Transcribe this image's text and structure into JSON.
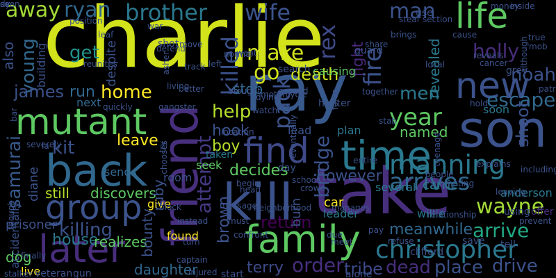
{
  "words": [
    {
      "text": "charlie",
      "color": "#d2e21b"
    },
    {
      "text": "ray",
      "color": "#38598c"
    },
    {
      "text": "friend",
      "color": "#472f7d"
    },
    {
      "text": "take",
      "color": "#472f7d"
    },
    {
      "text": "kill",
      "color": "#3b528b"
    },
    {
      "text": "son",
      "color": "#3b528b"
    },
    {
      "text": "time",
      "color": "#2a788e"
    },
    {
      "text": "back",
      "color": "#31688e"
    },
    {
      "text": "group",
      "color": "#3b528b"
    },
    {
      "text": "family",
      "color": "#5ec962"
    },
    {
      "text": "mutant",
      "color": "#5ec962"
    },
    {
      "text": "find",
      "color": "#3e4a89"
    },
    {
      "text": "later",
      "color": "#472d7b"
    },
    {
      "text": "life",
      "color": "#5ec962"
    },
    {
      "text": "new",
      "color": "#3b528b"
    },
    {
      "text": "christopher",
      "color": "#2a788e"
    },
    {
      "text": "manning",
      "color": "#2a788e"
    },
    {
      "text": "arrives",
      "color": "#31688e"
    },
    {
      "text": "wayne",
      "color": "#a2da37"
    },
    {
      "text": "arrive",
      "color": "#22a884"
    },
    {
      "text": "brother",
      "color": "#2a788e"
    },
    {
      "text": "wife",
      "color": "#3b528b"
    },
    {
      "text": "attempt",
      "color": "#443983"
    },
    {
      "text": "bridge",
      "color": "#3b528b"
    },
    {
      "text": "samurai",
      "color": "#38598c"
    },
    {
      "text": "away",
      "color": "#a2da37"
    },
    {
      "text": "ryan",
      "color": "#31688e"
    },
    {
      "text": "man",
      "color": "#3b528b"
    },
    {
      "text": "holly",
      "color": "#472d7b"
    },
    {
      "text": "escape",
      "color": "#31688e"
    },
    {
      "text": "shoot",
      "color": "#3b528b"
    },
    {
      "text": "year",
      "color": "#5ec962"
    },
    {
      "text": "men",
      "color": "#2a788e"
    },
    {
      "text": "revealed",
      "color": "#2a788e"
    },
    {
      "text": "noah",
      "color": "#3b528b"
    },
    {
      "text": "make",
      "color": "#d2e21b"
    },
    {
      "text": "go",
      "color": "#d2e21b"
    },
    {
      "text": "home",
      "color": "#fde725"
    },
    {
      "text": "help",
      "color": "#b5de2b"
    },
    {
      "text": "killed",
      "color": "#3b528b"
    },
    {
      "text": "pack",
      "color": "#3b528b"
    },
    {
      "text": "rex",
      "color": "#3e4a89"
    },
    {
      "text": "death",
      "color": "#cde11d"
    },
    {
      "text": "fire",
      "color": "#3b528b"
    },
    {
      "text": "fight",
      "color": "#482878"
    },
    {
      "text": "young",
      "color": "#31688e"
    },
    {
      "text": "james",
      "color": "#3b528b"
    },
    {
      "text": "get",
      "color": "#21918c"
    },
    {
      "text": "run",
      "color": "#31688e"
    },
    {
      "text": "kit",
      "color": "#3b528b"
    },
    {
      "text": "killing",
      "color": "#3b528b"
    },
    {
      "text": "house",
      "color": "#2a788e"
    },
    {
      "text": "realizes",
      "color": "#5ec962"
    },
    {
      "text": "discovers",
      "color": "#5ec962"
    },
    {
      "text": "still",
      "color": "#b5de2b"
    },
    {
      "text": "however",
      "color": "#3b528b"
    },
    {
      "text": "decides",
      "color": "#5ec962"
    },
    {
      "text": "return",
      "color": "#440154"
    },
    {
      "text": "order",
      "color": "#472f7d"
    },
    {
      "text": "dead",
      "color": "#472f7d"
    },
    {
      "text": "place",
      "color": "#3b528b"
    },
    {
      "text": "drive",
      "color": "#3b528b"
    },
    {
      "text": "named",
      "color": "#5ec962"
    },
    {
      "text": "boy",
      "color": "#b5de2b"
    },
    {
      "text": "hook",
      "color": "#3b528b"
    },
    {
      "text": "stop",
      "color": "#31688e"
    },
    {
      "text": "leave",
      "color": "#fde725"
    },
    {
      "text": "dog",
      "color": "#5ec962"
    },
    {
      "text": "live",
      "color": "#fde725"
    },
    {
      "text": "brown",
      "color": "#3b528b"
    },
    {
      "text": "terry",
      "color": "#3e4a89"
    },
    {
      "text": "meanwhile",
      "color": "#31688e"
    },
    {
      "text": "diane",
      "color": "#3b528b"
    },
    {
      "text": "daughter",
      "color": "#31688e"
    },
    {
      "text": "ruby",
      "color": "#3b528b"
    },
    {
      "text": "bounty",
      "color": "#3b528b"
    },
    {
      "text": "tribe",
      "color": "#3e4a89"
    },
    {
      "text": "carrie",
      "color": "#2a788e"
    },
    {
      "text": "anderson",
      "color": "#2a788e"
    },
    {
      "text": "willie",
      "color": "#2a788e"
    },
    {
      "text": "despite",
      "color": "#3b528b"
    },
    {
      "text": "building",
      "color": "#3b528b"
    },
    {
      "text": "prisoner",
      "color": "#3b528b"
    },
    {
      "text": "also",
      "color": "#3b528b"
    },
    {
      "text": "accidentally",
      "color": "#3b528b"
    },
    {
      "text": "room",
      "color": "#3b528b"
    },
    {
      "text": "burn",
      "color": "#3b528b"
    },
    {
      "text": "seek",
      "color": "#5ec962"
    },
    {
      "text": "taken",
      "color": "#2a788e"
    },
    {
      "text": "sends",
      "color": "#31688e"
    },
    {
      "text": "lead",
      "color": "#3b528b"
    },
    {
      "text": "plan",
      "color": "#2a788e"
    },
    {
      "text": "causing",
      "color": "#5ec962"
    },
    {
      "text": "several",
      "color": "#2a788e"
    },
    {
      "text": "leader",
      "color": "#2a788e"
    },
    {
      "text": "car",
      "color": "#fde725"
    },
    {
      "text": "give",
      "color": "#fde725"
    },
    {
      "text": "found",
      "color": "#fde725"
    },
    {
      "text": "next",
      "color": "#31688e"
    },
    {
      "text": "soon",
      "color": "#2a788e"
    },
    {
      "text": "day",
      "color": "#3b528b"
    },
    {
      "text": "use",
      "color": "#3b528b"
    },
    {
      "text": "guard",
      "color": "#3b528b"
    },
    {
      "text": "grey",
      "color": "#3b528b"
    },
    {
      "text": "gun",
      "color": "#3b528b"
    },
    {
      "text": "veteran",
      "color": "#3b528b"
    },
    {
      "text": "stalker",
      "color": "#3b528b"
    },
    {
      "text": "alone",
      "color": "#3b528b"
    },
    {
      "text": "start",
      "color": "#3b528b"
    },
    {
      "text": "clifford",
      "color": "#3b528b"
    },
    {
      "text": "save",
      "color": "#3b528b"
    },
    {
      "text": "tell",
      "color": "#3b528b"
    },
    {
      "text": "offer",
      "color": "#472d7b"
    },
    {
      "text": "using",
      "color": "#3b528b"
    },
    {
      "text": "leaving",
      "color": "#3b528b"
    },
    {
      "text": "refuse",
      "color": "#3b528b"
    },
    {
      "text": "pay",
      "color": "#3b528b"
    },
    {
      "text": "meet",
      "color": "#3b528b"
    },
    {
      "text": "due",
      "color": "#3b528b"
    },
    {
      "text": "must",
      "color": "#3b528b"
    },
    {
      "text": "instead",
      "color": "#3b528b"
    },
    {
      "text": "captain",
      "color": "#3b528b"
    },
    {
      "text": "injured",
      "color": "#3b528b"
    },
    {
      "text": "turn",
      "color": "#3b528b"
    },
    {
      "text": "block",
      "color": "#3b528b"
    },
    {
      "text": "try",
      "color": "#3b528b"
    },
    {
      "text": "shot",
      "color": "#3b528b"
    },
    {
      "text": "move",
      "color": "#3b528b"
    },
    {
      "text": "defend",
      "color": "#3b528b"
    },
    {
      "text": "war",
      "color": "#3b528b"
    },
    {
      "text": "position",
      "color": "#3b528b"
    },
    {
      "text": "reunites",
      "color": "#3b528b"
    },
    {
      "text": "quickly",
      "color": "#3b528b"
    },
    {
      "text": "gangster",
      "color": "#3b528b"
    },
    {
      "text": "living",
      "color": "#3b528b"
    },
    {
      "text": "better",
      "color": "#3b528b"
    },
    {
      "text": "track",
      "color": "#3b528b"
    },
    {
      "text": "left",
      "color": "#3b528b"
    },
    {
      "text": "normal",
      "color": "#3b528b"
    },
    {
      "text": "want",
      "color": "#3b528b"
    },
    {
      "text": "share",
      "color": "#3b528b"
    },
    {
      "text": "steal",
      "color": "#3b528b"
    },
    {
      "text": "section",
      "color": "#3b528b"
    },
    {
      "text": "brings",
      "color": "#3b528b"
    },
    {
      "text": "reveals",
      "color": "#3b528b"
    },
    {
      "text": "cause",
      "color": "#3b528b"
    },
    {
      "text": "money",
      "color": "#3b528b"
    },
    {
      "text": "true",
      "color": "#3b528b"
    },
    {
      "text": "mob",
      "color": "#3b528b"
    },
    {
      "text": "inside",
      "color": "#3b528b"
    },
    {
      "text": "local",
      "color": "#3b528b"
    },
    {
      "text": "cancer",
      "color": "#3b528b"
    },
    {
      "text": "patrick",
      "color": "#3b528b"
    },
    {
      "text": "hold",
      "color": "#3b528b"
    },
    {
      "text": "force",
      "color": "#3b528b"
    },
    {
      "text": "stab",
      "color": "#3b528b"
    },
    {
      "text": "entire",
      "color": "#3b528b"
    },
    {
      "text": "people",
      "color": "#3b528b"
    },
    {
      "text": "school",
      "color": "#3b528b"
    },
    {
      "text": "crowd",
      "color": "#3b528b"
    },
    {
      "text": "manages",
      "color": "#3b528b"
    },
    {
      "text": "begin",
      "color": "#3b528b"
    },
    {
      "text": "head",
      "color": "#3b528b"
    },
    {
      "text": "brought",
      "color": "#3b528b"
    },
    {
      "text": "location",
      "color": "#3b528b"
    },
    {
      "text": "dying",
      "color": "#3b528b"
    },
    {
      "text": "watch",
      "color": "#3b528b"
    },
    {
      "text": "motorcycle",
      "color": "#3b528b"
    },
    {
      "text": "ground",
      "color": "#3b528b"
    },
    {
      "text": "finally",
      "color": "#3b528b"
    },
    {
      "text": "though",
      "color": "#3b528b"
    },
    {
      "text": "severely",
      "color": "#3b528b"
    },
    {
      "text": "chooses",
      "color": "#3b528b"
    },
    {
      "text": "message",
      "color": "#3b528b"
    },
    {
      "text": "prevent",
      "color": "#3b528b"
    },
    {
      "text": "including",
      "color": "#3b528b"
    },
    {
      "text": "explains",
      "color": "#3b528b"
    },
    {
      "text": "relationship",
      "color": "#3b528b"
    },
    {
      "text": "confront",
      "color": "#3b528b"
    },
    {
      "text": "together",
      "color": "#3b528b"
    },
    {
      "text": "eventually",
      "color": "#3b528b"
    },
    {
      "text": "teenage",
      "color": "#3b528b"
    },
    {
      "text": "although",
      "color": "#3b528b"
    },
    {
      "text": "search",
      "color": "#3b528b"
    },
    {
      "text": "hunter",
      "color": "#3b528b"
    },
    {
      "text": "asher",
      "color": "#3b528b"
    },
    {
      "text": "bar",
      "color": "#3b528b"
    },
    {
      "text": "leaf",
      "color": "#3b528b"
    },
    {
      "text": "neighborhood",
      "color": "#3b528b"
    },
    {
      "text": "prompting",
      "color": "#3b528b"
    },
    {
      "text": "la",
      "color": "#3b528b"
    },
    {
      "text": "dr",
      "color": "#3b528b"
    },
    {
      "text": "dy",
      "color": "#3b528b"
    },
    {
      "text": "seen",
      "color": "#3b528b"
    }
  ]
}
